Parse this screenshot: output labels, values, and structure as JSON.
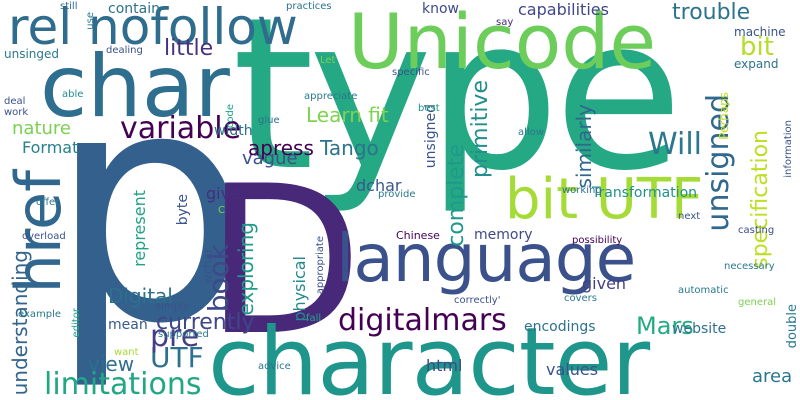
{
  "words": {
    "type": {
      "text": "type",
      "color": "#25a884"
    },
    "p": {
      "text": "p",
      "color": "#33608d"
    },
    "D": {
      "text": "D",
      "color": "#482979"
    },
    "character": {
      "text": "character",
      "color": "#1f968b"
    },
    "unicode": {
      "text": "Unicode",
      "color": "#6ccd5a"
    },
    "char": {
      "text": "char",
      "color": "#2e6e8e"
    },
    "language": {
      "text": "language",
      "color": "#3b518b"
    },
    "rel_nofollow": {
      "text": "rel nofollow",
      "color": "#2f6c8e"
    },
    "href": {
      "text": "href",
      "color": "#31668e"
    },
    "bit_utf": {
      "text": "bit UTF",
      "color": "#a5db36"
    },
    "digitalmars": {
      "text": "digitalmars",
      "color": "#440154"
    },
    "limitations": {
      "text": "limitations",
      "color": "#22a785"
    },
    "variable": {
      "text": "variable",
      "color": "#440154"
    },
    "unsigned_lg": {
      "text": "unsigned",
      "color": "#31688e"
    },
    "book": {
      "text": "book",
      "color": "#3e4989"
    },
    "utf": {
      "text": "UTF",
      "color": "#2c728e"
    },
    "will": {
      "text": "Will",
      "color": "#2a788e"
    },
    "bit": {
      "text": "bit",
      "color": "#b5de2b"
    },
    "mars": {
      "text": "Mars",
      "color": "#25ab82"
    },
    "little": {
      "text": "little",
      "color": "#46327e"
    },
    "currently": {
      "text": "currently",
      "color": "#3f4788"
    },
    "specification": {
      "text": "specification",
      "color": "#bddf26"
    },
    "trouble": {
      "text": "trouble",
      "color": "#2c738e"
    },
    "capabilities": {
      "text": "capabilities",
      "color": "#404688"
    },
    "pre": {
      "text": "pre",
      "color": "#433e85"
    },
    "nature": {
      "text": "nature",
      "color": "#7ad151"
    },
    "exploring": {
      "text": "exploring",
      "color": "#1e9b8a"
    },
    "digital": {
      "text": "Digital",
      "color": "#2d708e"
    },
    "primitive": {
      "text": "primitive",
      "color": "#218f8d"
    },
    "tango": {
      "text": "Tango",
      "color": "#2c738e"
    },
    "vague": {
      "text": "vague",
      "color": "#3b528b"
    },
    "apress": {
      "text": "apress",
      "color": "#440154"
    },
    "learn_fit": {
      "text": "Learn fit",
      "color": "#7fd34e"
    },
    "complete": {
      "text": "complete",
      "color": "#1f9a8a"
    },
    "similarly": {
      "text": "similarly",
      "color": "#31678e"
    },
    "understanding": {
      "text": "understanding",
      "color": "#32658e"
    },
    "format": {
      "text": "Format",
      "color": "#27808e"
    },
    "transformation": {
      "text": "Transformation",
      "color": "#21918c"
    },
    "encodings": {
      "text": "encodings",
      "color": "#2d718e"
    },
    "values": {
      "text": "values",
      "color": "#3b528b"
    },
    "view": {
      "text": "view",
      "color": "#2d708e"
    },
    "area": {
      "text": "area",
      "color": "#2a768e"
    },
    "website": {
      "text": "website",
      "color": "#2c718e"
    },
    "mean": {
      "text": "mean",
      "color": "#38598c"
    },
    "physical": {
      "text": "physical",
      "color": "#23898e"
    },
    "memory": {
      "text": "memory",
      "color": "#3e4a89"
    },
    "dchar": {
      "text": "dchar",
      "color": "#38588c"
    },
    "width": {
      "text": "width",
      "color": "#2d708e"
    },
    "give": {
      "text": "give",
      "color": "#472d7b"
    },
    "given": {
      "text": "given",
      "color": "#424086"
    },
    "html": {
      "text": "html",
      "color": "#3e4989"
    },
    "represent": {
      "text": "represent",
      "color": "#1fa188"
    },
    "byte": {
      "text": "byte",
      "color": "#39568c"
    },
    "unsigned_sm": {
      "text": "unsigned",
      "color": "#3a538b"
    },
    "contain": {
      "text": "contain",
      "color": "#2d708e"
    },
    "know": {
      "text": "know",
      "color": "#3e4989"
    },
    "machine": {
      "text": "machine",
      "color": "#3a538b"
    },
    "expand": {
      "text": "expand",
      "color": "#2c728e"
    },
    "double": {
      "text": "double",
      "color": "#2a788e"
    },
    "chinese": {
      "text": "Chinese",
      "color": "#440154"
    },
    "possibility": {
      "text": "possibility",
      "color": "#440154"
    },
    "casting": {
      "text": "casting",
      "color": "#3e4a89"
    },
    "perhaps": {
      "text": "Perhaps",
      "color": "#c2df23"
    },
    "wchar": {
      "text": "wchar",
      "color": "#3b528b"
    },
    "working": {
      "text": "working",
      "color": "#2d708e"
    },
    "dealing": {
      "text": "dealing",
      "color": "#3a538b"
    },
    "glue": {
      "text": "glue",
      "color": "#2d708e"
    },
    "code": {
      "text": "code",
      "color": "#1f9e89"
    },
    "appreciate": {
      "text": "appreciate",
      "color": "#2a788e"
    },
    "specific": {
      "text": "specific",
      "color": "#3b528b"
    },
    "let": {
      "text": "Let",
      "color": "#7ad151"
    },
    "best": {
      "text": "best",
      "color": "#1f968b"
    },
    "say": {
      "text": "say",
      "color": "#482878"
    },
    "practices": {
      "text": "practices",
      "color": "#2c728e"
    },
    "use": {
      "text": "use",
      "color": "#2a788e"
    },
    "still": {
      "text": "still",
      "color": "#31688e"
    },
    "unsinged": {
      "text": "unsinged",
      "color": "#2a788e"
    },
    "deal_work": {
      "text": "deal\nwork",
      "color": "#3b528b"
    },
    "able": {
      "text": "able",
      "color": "#238a8d"
    },
    "offer": {
      "text": "offer",
      "color": "#2a788e"
    },
    "overload": {
      "text": "overload",
      "color": "#3b528b"
    },
    "example": {
      "text": "example",
      "color": "#2a788e"
    },
    "editor": {
      "text": "editor",
      "color": "#22a785"
    },
    "want": {
      "text": "want",
      "color": "#a5db36"
    },
    "simply": {
      "text": "simply",
      "color": "#3b528b"
    },
    "supported": {
      "text": "supported",
      "color": "#2a788e"
    },
    "appropriate": {
      "text": "appropriate",
      "color": "#3b528b"
    },
    "provide": {
      "text": "provide",
      "color": "#2a788e"
    },
    "c": {
      "text": "C",
      "color": "#7ad151"
    },
    "covers": {
      "text": "covers",
      "color": "#2a788e"
    },
    "correctly": {
      "text": "correctly'",
      "color": "#3b528b"
    },
    "automatic": {
      "text": "automatic",
      "color": "#2a788e"
    },
    "fall": {
      "text": "fall",
      "color": "#22a785"
    },
    "advice": {
      "text": "advice",
      "color": "#2a788e"
    },
    "general": {
      "text": "general",
      "color": "#7ad151"
    },
    "necessary": {
      "text": "necessary",
      "color": "#2a788e"
    },
    "next": {
      "text": "next",
      "color": "#3b528b"
    },
    "allow": {
      "text": "allow",
      "color": "#2a788e"
    },
    "information": {
      "text": "information",
      "color": "#3b528b"
    }
  }
}
